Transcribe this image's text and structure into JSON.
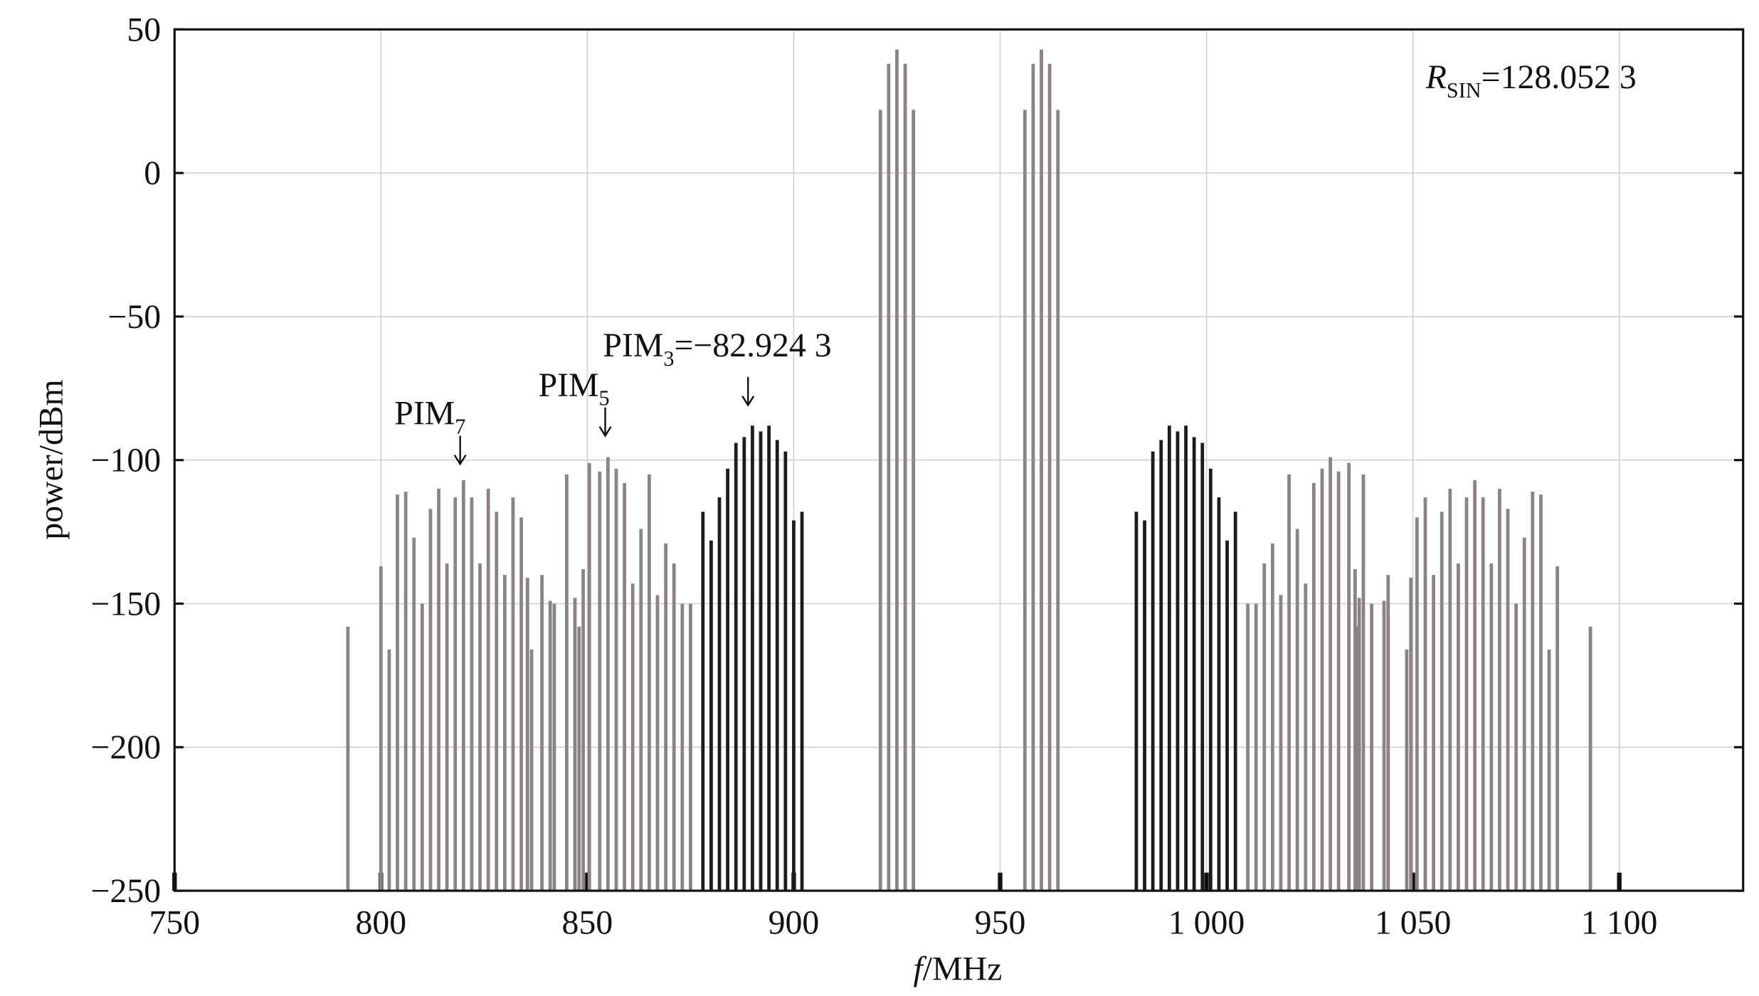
{
  "chart_data": {
    "type": "stem",
    "xlabel": {
      "italic": "f",
      "text": "/MHz"
    },
    "ylabel": "power/dBm",
    "xlim": [
      750,
      1130
    ],
    "ylim": [
      -250,
      50
    ],
    "xticks": [
      750,
      800,
      850,
      900,
      950,
      {
        "value": 1000,
        "label": "1 000"
      },
      {
        "value": 1050,
        "label": "1 050"
      },
      {
        "value": 1100,
        "label": "1 100"
      }
    ],
    "yticks": [
      {
        "value": -250,
        "label": "−250"
      },
      {
        "value": -200,
        "label": "−200"
      },
      {
        "value": -150,
        "label": "−150"
      },
      {
        "value": -100,
        "label": "−100"
      },
      {
        "value": -50,
        "label": "−50"
      },
      0,
      50
    ],
    "grid": true,
    "series": [
      {
        "color": "#8c8386",
        "x": [
          792,
          800,
          802,
          804,
          806,
          808,
          810,
          812,
          814,
          816,
          818,
          820,
          822,
          824,
          826,
          828,
          830,
          832,
          834,
          835.5,
          836.5,
          839,
          841,
          842,
          845,
          847,
          848,
          849,
          850.5,
          853,
          855,
          857,
          859,
          861,
          863,
          865,
          867,
          869,
          871,
          873,
          875,
          921,
          923,
          925,
          927,
          929,
          956,
          958,
          960,
          962,
          964,
          1010,
          1012,
          1014,
          1016,
          1018,
          1020,
          1022,
          1024,
          1026,
          1028,
          1030,
          1032,
          1034.5,
          1036,
          1036.5,
          1037,
          1038,
          1040,
          1043,
          1044,
          1048.5,
          1049.5,
          1051,
          1053,
          1055,
          1057,
          1059,
          1061,
          1063,
          1065,
          1067,
          1069,
          1071,
          1073,
          1075,
          1077,
          1079,
          1081,
          1083,
          1085,
          1093
        ],
        "values": [
          -158,
          -137,
          -166,
          -112,
          -111,
          -127,
          -150,
          -117,
          -110,
          -136,
          -113,
          -107,
          -113,
          -136,
          -110,
          -118,
          -140,
          -113,
          -120,
          -141,
          -166,
          -140,
          -149,
          -150,
          -105,
          -148,
          -158,
          -138,
          -101,
          -104,
          -99,
          -103,
          -108,
          -143,
          -124,
          -105,
          -147,
          -129,
          -136,
          -150,
          -150,
          22,
          38,
          43,
          38,
          22,
          22,
          38,
          43,
          38,
          22,
          -150,
          -150,
          -136,
          -129,
          -147,
          -105,
          -124,
          -143,
          -108,
          -103,
          -99,
          -104,
          -101,
          -138,
          -158,
          -148,
          -105,
          -150,
          -149,
          -140,
          -166,
          -141,
          -120,
          -113,
          -140,
          -118,
          -110,
          -136,
          -113,
          -107,
          -113,
          -136,
          -110,
          -117,
          -150,
          -127,
          -111,
          -112,
          -166,
          -137,
          -158
        ]
      },
      {
        "color": "#1c1c1c",
        "x": [
          878,
          880,
          882,
          884,
          886,
          888,
          890,
          892,
          894,
          896,
          898,
          900,
          902,
          983,
          985,
          987,
          989,
          991,
          993,
          995,
          997,
          999,
          1001,
          1003,
          1005,
          1007
        ],
        "values": [
          -118,
          -128,
          -113,
          -103,
          -94,
          -92,
          -88,
          -90,
          -88,
          -93,
          -97,
          -121,
          -118,
          -118,
          -121,
          -97,
          -93,
          -88,
          -90,
          -88,
          -92,
          -94,
          -103,
          -113,
          -128,
          -118
        ]
      }
    ],
    "annotations": [
      {
        "text": "PIM",
        "sub": "7"
      },
      {
        "text": "PIM",
        "sub": "5"
      },
      {
        "text": "PIM",
        "sub": "3",
        "value_text": "=−82.924 3"
      }
    ],
    "r_sin": {
      "italic": "R",
      "sub": "SIN",
      "text": "=128.052 3"
    }
  }
}
